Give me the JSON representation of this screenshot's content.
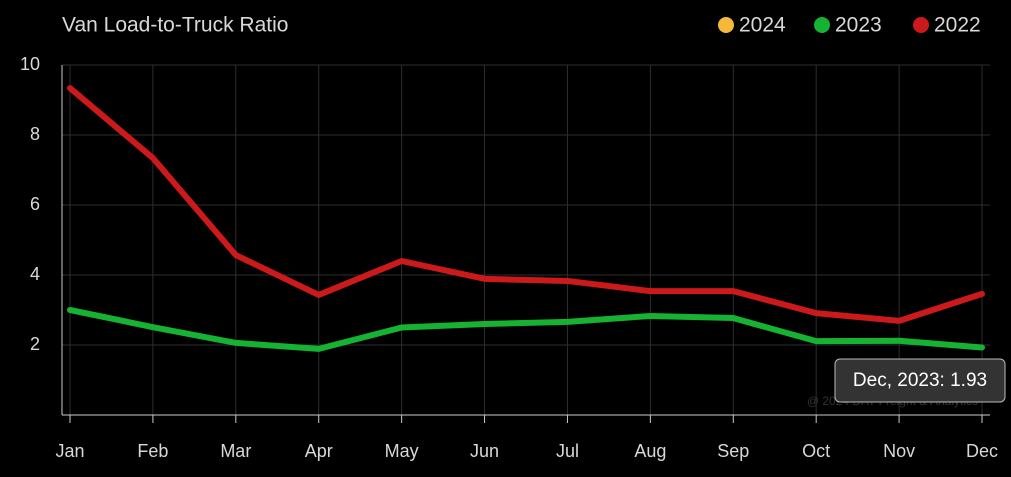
{
  "chart_data": {
    "type": "line",
    "title": "Van Load-to-Truck Ratio",
    "categories": [
      "Jan",
      "Feb",
      "Mar",
      "Apr",
      "May",
      "Jun",
      "Jul",
      "Aug",
      "Sep",
      "Oct",
      "Nov",
      "Dec"
    ],
    "series": [
      {
        "name": "2024",
        "color": "#f5b93a",
        "values": [
          null,
          null,
          null,
          null,
          null,
          null,
          null,
          null,
          null,
          null,
          null,
          null
        ]
      },
      {
        "name": "2023",
        "color": "#16b232",
        "values": [
          3.0,
          2.51,
          2.06,
          1.89,
          2.5,
          2.6,
          2.66,
          2.83,
          2.77,
          2.11,
          2.12,
          1.93
        ]
      },
      {
        "name": "2022",
        "color": "#cc1a1a",
        "values": [
          9.34,
          7.34,
          4.57,
          3.43,
          4.4,
          3.89,
          3.83,
          3.54,
          3.54,
          2.91,
          2.69,
          3.46
        ]
      }
    ],
    "ylim": [
      0,
      10
    ],
    "yticks": [
      2,
      4,
      6,
      8,
      10
    ],
    "grid": true,
    "tooltip": "Dec, 2023: 1.93",
    "watermark": "@ 2024 DAT Freight & Analytics"
  }
}
